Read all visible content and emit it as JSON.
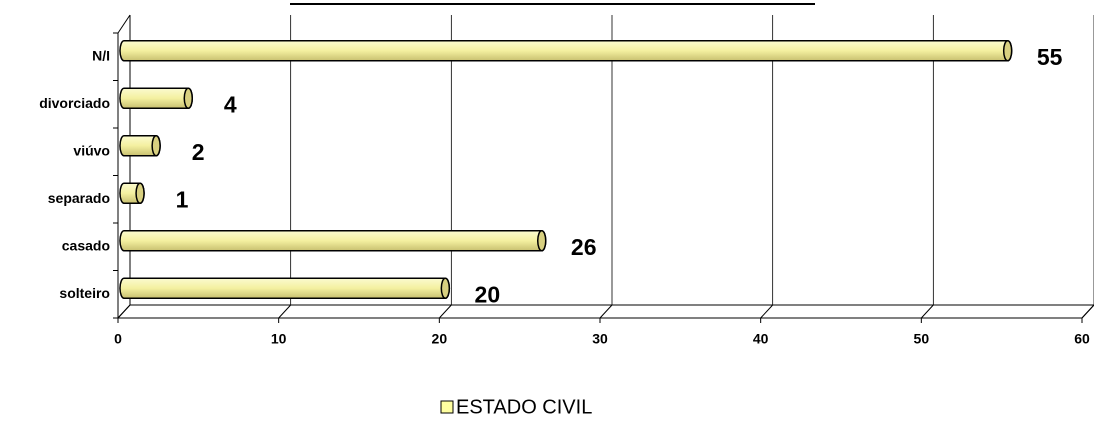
{
  "chart_data": {
    "type": "bar",
    "orientation": "horizontal",
    "categories": [
      "solteiro",
      "casado",
      "separado",
      "viúvo",
      "divorciado",
      "N/I"
    ],
    "series": [
      {
        "name": "ESTADO CIVIL",
        "color": "#ffffa0",
        "values": [
          20,
          26,
          1,
          2,
          4,
          55
        ]
      }
    ],
    "xlim": [
      0,
      60
    ],
    "xticks": [
      0,
      10,
      20,
      30,
      40,
      50,
      60
    ],
    "grid": true,
    "legend": "bottom"
  }
}
